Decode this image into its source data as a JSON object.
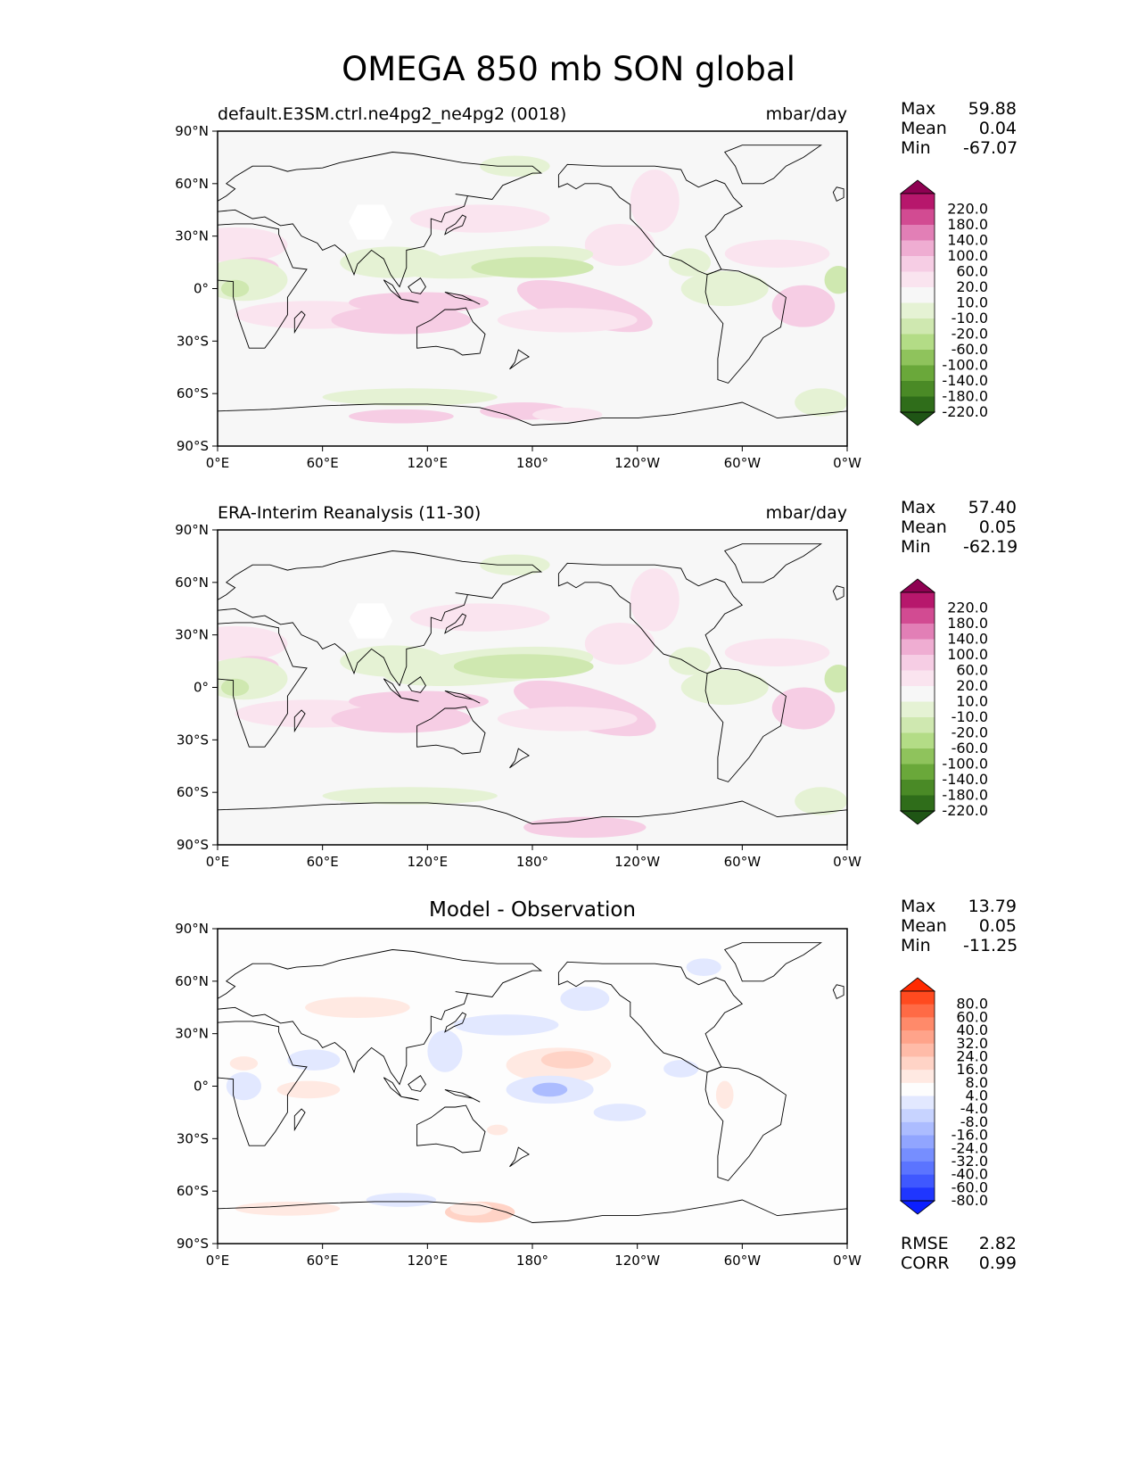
{
  "figure": {
    "title": "OMEGA 850 mb SON global"
  },
  "panels": [
    {
      "id": "test",
      "left_title": "default.E3SM.ctrl.ne4pg2_ne4pg2 (0018)",
      "center_title": "",
      "right_title": "mbar/day",
      "stats": {
        "Max": "59.88",
        "Mean": "0.04",
        "Min": "-67.07"
      },
      "palette": "PiYG",
      "colorbar_levels": [
        "220.0",
        "180.0",
        "140.0",
        "100.0",
        "60.0",
        "20.0",
        "10.0",
        "-10.0",
        "-20.0",
        "-60.0",
        "-100.0",
        "-140.0",
        "-180.0",
        "-220.0"
      ],
      "colorbar_colors": [
        "#8e0152",
        "#b7176c",
        "#d24b92",
        "#e27fb6",
        "#efadd2",
        "#f6cde4",
        "#fae4ef",
        "#f7f7f7",
        "#e5f2d4",
        "#cfe8b0",
        "#b3dc86",
        "#8fc35c",
        "#6aa83a",
        "#4a8a26",
        "#2f6d1a",
        "#1f5515"
      ]
    },
    {
      "id": "reference",
      "left_title": "ERA-Interim Reanalysis (11-30)",
      "center_title": "",
      "right_title": "mbar/day",
      "stats": {
        "Max": "57.40",
        "Mean": "0.05",
        "Min": "-62.19"
      },
      "palette": "PiYG",
      "colorbar_levels": [
        "220.0",
        "180.0",
        "140.0",
        "100.0",
        "60.0",
        "20.0",
        "10.0",
        "-10.0",
        "-20.0",
        "-60.0",
        "-100.0",
        "-140.0",
        "-180.0",
        "-220.0"
      ],
      "colorbar_colors": [
        "#8e0152",
        "#b7176c",
        "#d24b92",
        "#e27fb6",
        "#efadd2",
        "#f6cde4",
        "#fae4ef",
        "#f7f7f7",
        "#e5f2d4",
        "#cfe8b0",
        "#b3dc86",
        "#8fc35c",
        "#6aa83a",
        "#4a8a26",
        "#2f6d1a",
        "#1f5515"
      ]
    },
    {
      "id": "difference",
      "left_title": "",
      "center_title": "Model - Observation",
      "right_title": "",
      "stats": {
        "Max": "13.79",
        "Mean": "0.05",
        "Min": "-11.25"
      },
      "extra_stats": {
        "RMSE": "2.82",
        "CORR": "0.99"
      },
      "palette": "RdBu",
      "colorbar_levels": [
        "80.0",
        "60.0",
        "40.0",
        "32.0",
        "24.0",
        "16.0",
        "8.0",
        "4.0",
        "-4.0",
        "-8.0",
        "-16.0",
        "-24.0",
        "-32.0",
        "-40.0",
        "-60.0",
        "-80.0"
      ],
      "colorbar_colors": [
        "#ff2a00",
        "#ff4a1f",
        "#ff6a45",
        "#ff8a6a",
        "#ffa38a",
        "#ffbba8",
        "#ffd3c6",
        "#ffe9e2",
        "#fdfdfd",
        "#e2e8ff",
        "#c7d3ff",
        "#acbcff",
        "#91a5ff",
        "#768eff",
        "#5b74ff",
        "#3f58ff",
        "#1f36ff",
        "#0b1fff"
      ]
    }
  ],
  "axes": {
    "lat_ticks": [
      "90°N",
      "60°N",
      "30°N",
      "0°",
      "30°S",
      "60°S",
      "90°S"
    ],
    "lon_ticks": [
      "0°E",
      "60°E",
      "120°E",
      "180°",
      "120°W",
      "60°W",
      "0°W"
    ]
  }
}
